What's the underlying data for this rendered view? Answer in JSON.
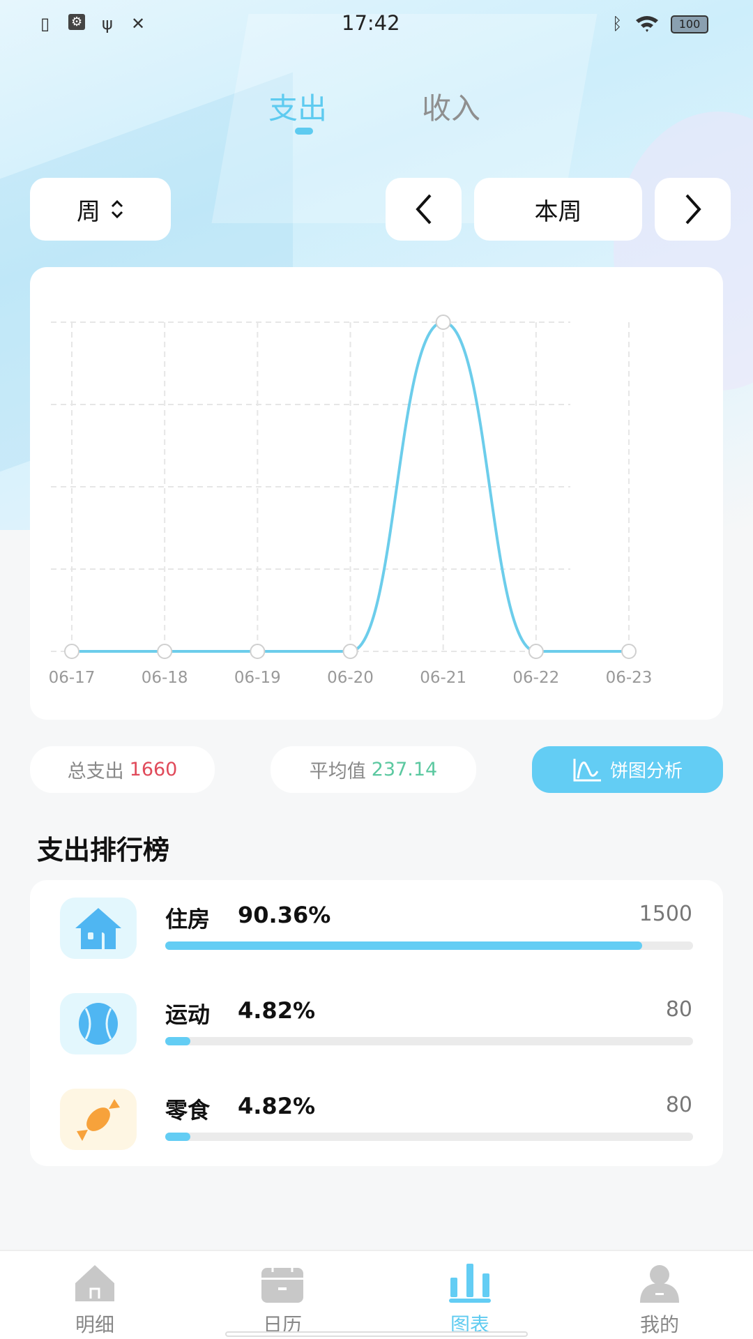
{
  "status_bar": {
    "time": "17:42",
    "battery": "100",
    "left_icons": [
      "sim-missing-icon",
      "usb-debug-icon",
      "usb-icon",
      "tools-icon"
    ],
    "right_icons": [
      "bluetooth-icon",
      "wifi-icon",
      "battery-icon"
    ]
  },
  "top_tabs": [
    {
      "label": "支出",
      "active": true
    },
    {
      "label": "收入",
      "active": false
    }
  ],
  "period": {
    "selector": "周",
    "current": "本周",
    "prev_icon": "chevron-left-icon",
    "next_icon": "chevron-right-icon"
  },
  "chart_data": {
    "type": "line",
    "categories": [
      "06-17",
      "06-18",
      "06-19",
      "06-20",
      "06-21",
      "06-22",
      "06-23"
    ],
    "values": [
      0,
      0,
      0,
      0,
      1660,
      0,
      0
    ],
    "ylim": [
      0,
      1660
    ],
    "grid": true,
    "smooth": true,
    "color": "#6ccdeb"
  },
  "stats": {
    "total_label": "总支出",
    "total_value": "1660",
    "avg_label": "平均值",
    "avg_value": "237.14",
    "pie_button": "饼图分析",
    "total_color": "#e04a5a",
    "avg_color": "#5bc8a0"
  },
  "ranking": {
    "title": "支出排行榜",
    "items": [
      {
        "name": "住房",
        "percent": "90.36%",
        "amount": "1500",
        "fraction": 0.9036,
        "icon": "house-icon"
      },
      {
        "name": "运动",
        "percent": "4.82%",
        "amount": "80",
        "fraction": 0.0482,
        "icon": "ball-icon"
      },
      {
        "name": "零食",
        "percent": "4.82%",
        "amount": "80",
        "fraction": 0.0482,
        "icon": "candy-icon"
      }
    ]
  },
  "bottom_nav": [
    {
      "label": "明细",
      "icon": "home-icon",
      "active": false
    },
    {
      "label": "日历",
      "icon": "calendar-icon",
      "active": false
    },
    {
      "label": "图表",
      "icon": "bar-chart-icon",
      "active": true
    },
    {
      "label": "我的",
      "icon": "user-icon",
      "active": false
    }
  ]
}
